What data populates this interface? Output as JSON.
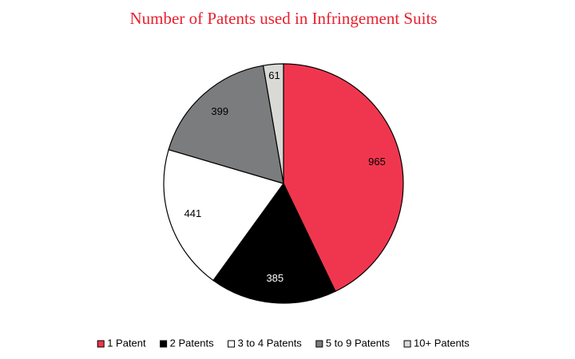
{
  "chart_data": {
    "type": "pie",
    "title": "Number of Patents used in Infringement Suits",
    "categories": [
      "1 Patent",
      "2 Patents",
      "3 to 4 Patents",
      "5 to 9 Patents",
      "10+ Patents"
    ],
    "values": [
      965,
      385,
      441,
      399,
      61
    ],
    "colors": [
      "#f0364f",
      "#000000",
      "#ffffff",
      "#7a7c7e",
      "#d9d9d6"
    ],
    "legend": "bottom"
  }
}
